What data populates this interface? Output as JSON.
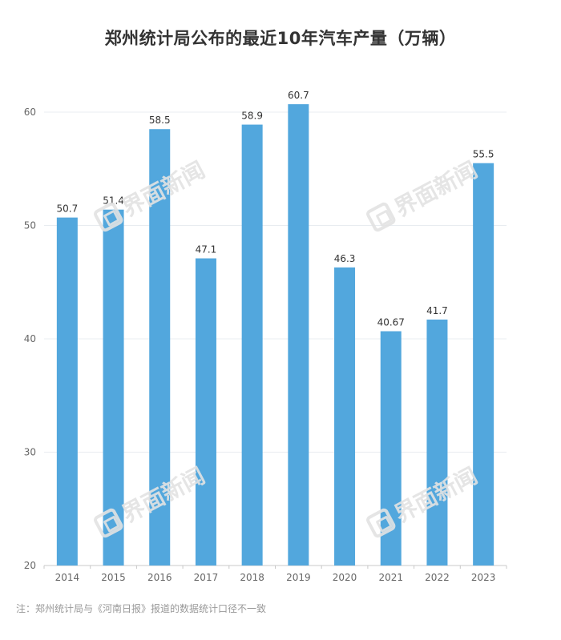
{
  "title": "郑州统计局公布的最近10年汽车产量（万辆）",
  "watermark_text": "界面新闻",
  "note": "注：郑州统计局与《河南日报》报道的数据统计口径不一致",
  "colors": {
    "bar": "#52a7dd",
    "grid": "#e8ecf0",
    "axis": "#c8c8c8",
    "tick_text": "#666666",
    "label_text": "#333333"
  },
  "chart_data": {
    "type": "bar",
    "categories": [
      "2014",
      "2015",
      "2016",
      "2017",
      "2018",
      "2019",
      "2020",
      "2021",
      "2022",
      "2023"
    ],
    "values": [
      50.7,
      51.4,
      58.5,
      47.1,
      58.9,
      60.7,
      46.3,
      40.67,
      41.7,
      55.5
    ],
    "value_labels": [
      "50.7",
      "51.4",
      "58.5",
      "47.1",
      "58.9",
      "60.7",
      "46.3",
      "40.67",
      "41.7",
      "55.5"
    ],
    "yticks": [
      20,
      30,
      40,
      50,
      60
    ],
    "ylim": [
      20,
      60
    ],
    "grid": true,
    "legend": false
  }
}
